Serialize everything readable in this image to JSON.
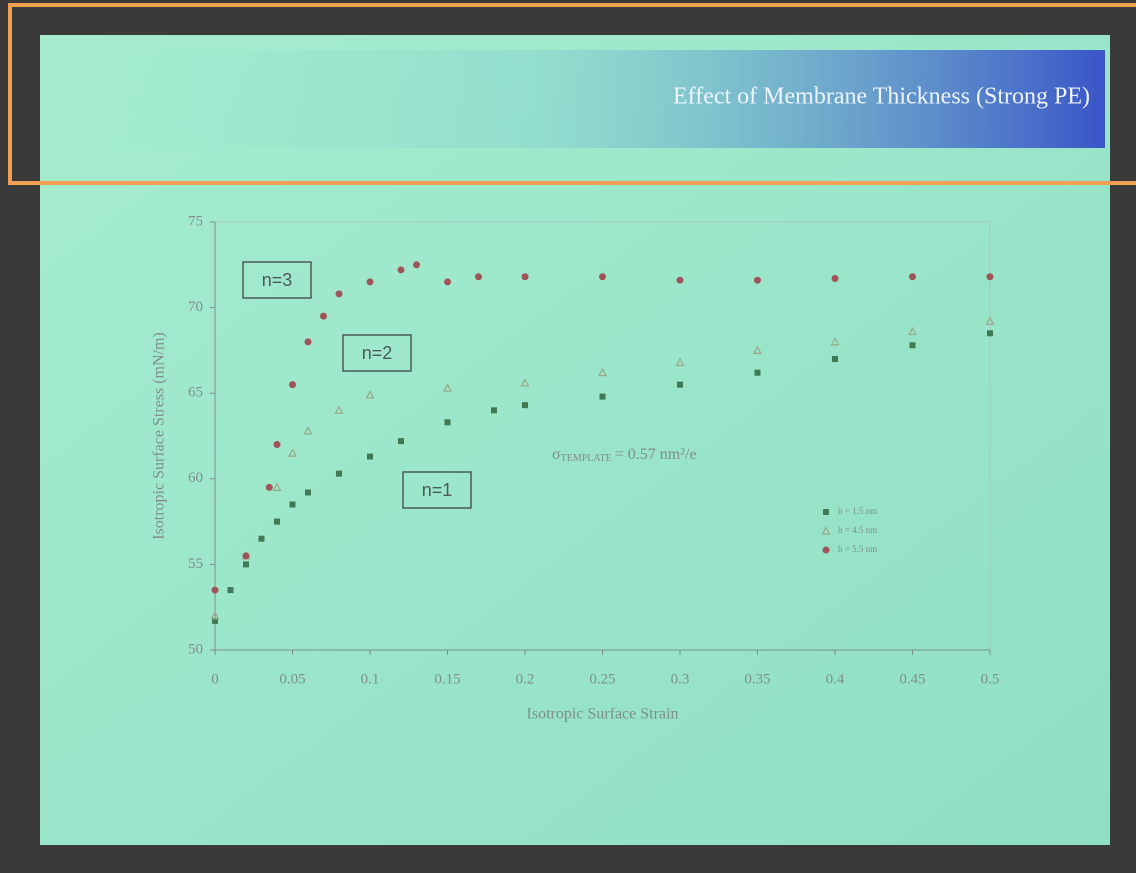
{
  "chart_data": {
    "type": "scatter",
    "title": "Effect of Membrane Thickness (Strong PE)",
    "x_label": "Isotropic Surface Strain",
    "y_label": "Isotropic Surface Stress (mN/m)",
    "annotations": [
      "n=3",
      "n=2",
      "n=1"
    ],
    "sigma_note": {
      "symbol": "σ",
      "subscript": "TEMPLATE",
      "text": "= 0.57 nm²/e"
    },
    "xlim": [
      0,
      0.5
    ],
    "xticks": [
      0,
      0.05,
      0.1,
      0.15,
      0.2,
      0.25,
      0.3,
      0.35,
      0.4,
      0.45,
      0.5
    ],
    "ylim": [
      50,
      75
    ],
    "yticks": [
      50,
      55,
      60,
      65,
      70,
      75
    ],
    "series": [
      {
        "name": "h = 1.5 nm",
        "color": "#3f7a55",
        "marker": "square",
        "x": [
          0,
          0.01,
          0.02,
          0.03,
          0.04,
          0.05,
          0.06,
          0.08,
          0.1,
          0.12,
          0.15,
          0.18,
          0.2,
          0.25,
          0.3,
          0.35,
          0.4,
          0.45,
          0.5
        ],
        "values": [
          51.7,
          53.5,
          55,
          56.5,
          57.5,
          58.5,
          59.2,
          60.3,
          61.3,
          62.2,
          63.3,
          64,
          64.3,
          64.8,
          65.5,
          66.2,
          67,
          67.8,
          68.5
        ]
      },
      {
        "name": "h = 4.5 nm",
        "color": "#9aa88a",
        "marker": "triangle",
        "x": [
          0,
          0.02,
          0.04,
          0.05,
          0.06,
          0.08,
          0.1,
          0.15,
          0.2,
          0.25,
          0.3,
          0.35,
          0.4,
          0.45,
          0.5
        ],
        "values": [
          52,
          55.5,
          59.5,
          61.5,
          62.8,
          64,
          64.9,
          65.3,
          65.6,
          66.2,
          66.8,
          67.5,
          68,
          68.6,
          69.2
        ]
      },
      {
        "name": "h = 5.5 nm",
        "color": "#a0545a",
        "marker": "circle",
        "x": [
          0,
          0.02,
          0.035,
          0.04,
          0.05,
          0.06,
          0.07,
          0.08,
          0.1,
          0.12,
          0.13,
          0.15,
          0.17,
          0.2,
          0.25,
          0.3,
          0.35,
          0.4,
          0.45,
          0.5
        ],
        "values": [
          53.5,
          55.5,
          59.5,
          62,
          65.5,
          68,
          69.5,
          70.8,
          71.5,
          72.2,
          72.5,
          71.5,
          71.8,
          71.8,
          71.8,
          71.6,
          71.6,
          71.7,
          71.8,
          71.8
        ]
      }
    ]
  }
}
